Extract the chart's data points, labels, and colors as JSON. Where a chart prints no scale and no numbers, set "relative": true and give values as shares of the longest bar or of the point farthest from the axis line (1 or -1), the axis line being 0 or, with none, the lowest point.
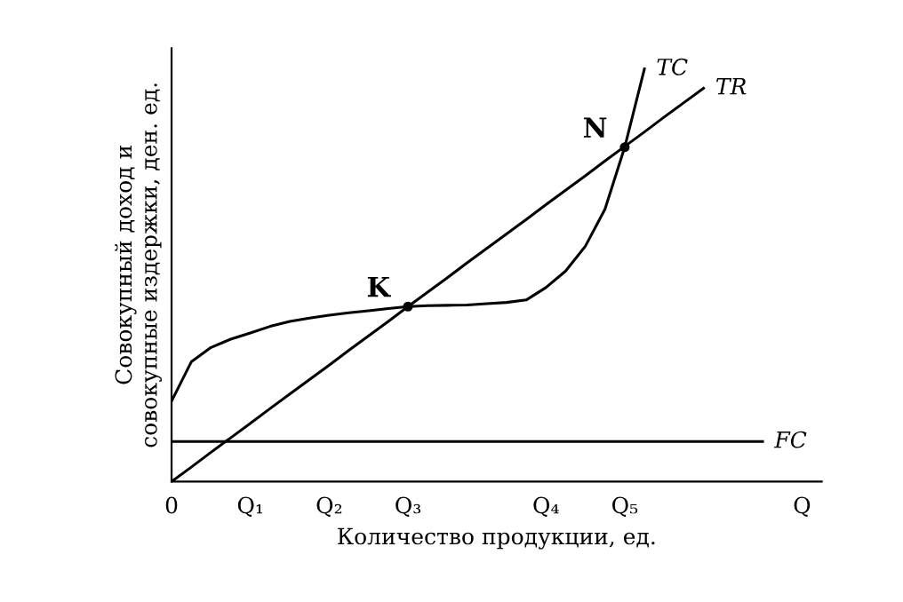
{
  "chart_data": {
    "type": "line",
    "relative": true,
    "xlabel": "Количество продукции, ед.",
    "ylabel": "Совокупный доход и\nсовокупные издержки, ден. ед.",
    "categories": [
      "0",
      null,
      null,
      null,
      "Q₁",
      null,
      null,
      null,
      "Q₂",
      null,
      null,
      null,
      "Q₃",
      null,
      null,
      null,
      null,
      null,
      null,
      "Q₄",
      null,
      null,
      null,
      "Q₅",
      null,
      null,
      null,
      null,
      null,
      null,
      null,
      null,
      "Q"
    ],
    "series": [
      {
        "name": "TC",
        "color": "#000000",
        "values": [
          0.195,
          0.29,
          0.325,
          0.345,
          0.36,
          0.376,
          0.388,
          0.396,
          0.403,
          0.409,
          0.414,
          0.419,
          0.424,
          0.426,
          0.427,
          0.428,
          0.431,
          0.434,
          0.44,
          0.47,
          0.51,
          0.57,
          0.66,
          0.81,
          1.0,
          null,
          null,
          null,
          null,
          null,
          null,
          null,
          null
        ]
      },
      {
        "name": "TR",
        "color": "#000000",
        "values": [
          0,
          0.035,
          0.071,
          0.106,
          0.141,
          0.177,
          0.212,
          0.247,
          0.282,
          0.318,
          0.353,
          0.388,
          0.424,
          0.459,
          0.494,
          0.53,
          0.565,
          0.6,
          0.635,
          0.671,
          0.706,
          0.741,
          0.777,
          0.812,
          0.847,
          0.883,
          0.918,
          0.953,
          null,
          null,
          null,
          null,
          null
        ]
      },
      {
        "name": "FC",
        "color": "#000000",
        "values": [
          0.097,
          0.097,
          0.097,
          0.097,
          0.097,
          0.097,
          0.097,
          0.097,
          0.097,
          0.097,
          0.097,
          0.097,
          0.097,
          0.097,
          0.097,
          0.097,
          0.097,
          0.097,
          0.097,
          0.097,
          0.097,
          0.097,
          0.097,
          0.097,
          0.097,
          0.097,
          0.097,
          0.097,
          0.097,
          0.097,
          0.097,
          null,
          null
        ]
      }
    ],
    "annotations": [
      {
        "text": "K",
        "x": "Q₃",
        "y": 0.424
      },
      {
        "text": "N",
        "x": "Q₅",
        "y": 0.81
      }
    ],
    "grid": false,
    "legend": false
  }
}
